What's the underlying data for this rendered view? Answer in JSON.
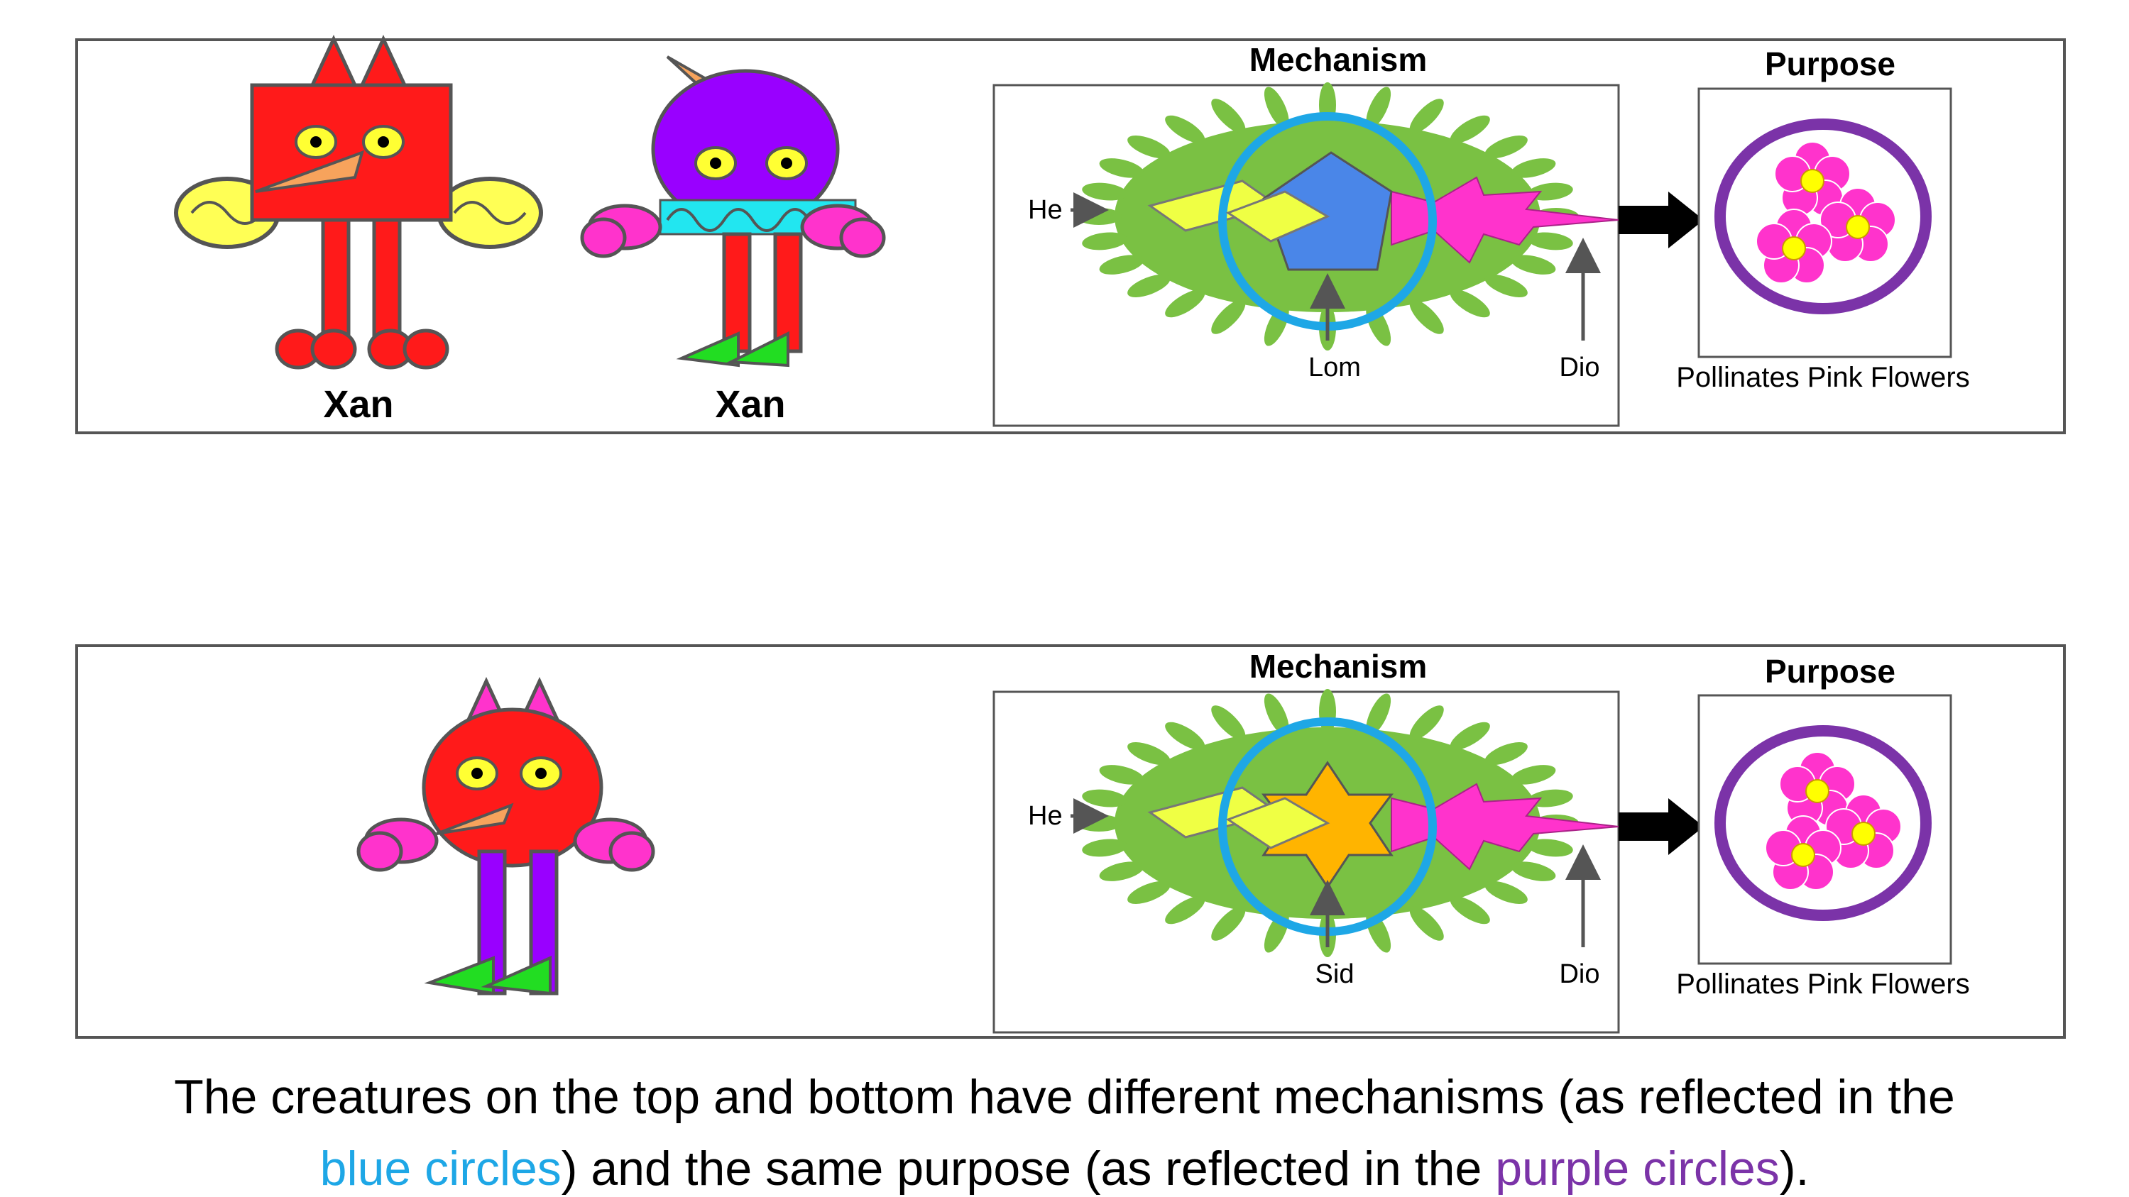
{
  "top_panel": {
    "creature_1_name": "Xan",
    "creature_2_name": "Xan",
    "mechanism": {
      "title": "Mechanism",
      "label_left": "He",
      "label_center": "Lom",
      "label_right": "Dio"
    },
    "purpose": {
      "title": "Purpose",
      "caption": "Pollinates Pink Flowers"
    }
  },
  "bottom_panel": {
    "mechanism": {
      "title": "Mechanism",
      "label_left": "He",
      "label_center": "Sid",
      "label_right": "Dio"
    },
    "purpose": {
      "title": "Purpose",
      "caption": "Pollinates Pink Flowers"
    }
  },
  "caption": {
    "line1": "The creatures on the top and bottom have different mechanisms (as reflected in the",
    "blue_phrase": "blue circles",
    "middle_text": ") and the same purpose (as reflected in the ",
    "purple_phrase": "purple circles",
    "end_text": ")."
  },
  "colors": {
    "mechanism_circle": "#1ea7e6",
    "purpose_circle": "#7b33a8",
    "virus_body": "#7ac143",
    "flower_petal": "#ff33cc",
    "creature_red": "#ff1a1a",
    "creature_purple": "#9900ff"
  }
}
